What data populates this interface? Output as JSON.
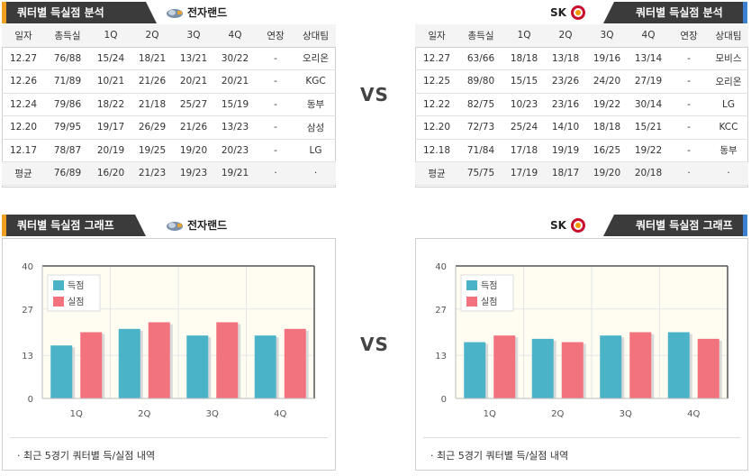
{
  "left": {
    "header": "쿼터별 득실점 분석",
    "team": "전자랜드",
    "columns": [
      "일자",
      "총득실",
      "1Q",
      "2Q",
      "3Q",
      "4Q",
      "연장",
      "상대팀"
    ],
    "rows": [
      [
        "12.27",
        "76/88",
        "15/24",
        "18/21",
        "13/21",
        "30/22",
        "-",
        "오리온"
      ],
      [
        "12.26",
        "71/89",
        "10/21",
        "21/26",
        "20/21",
        "20/21",
        "-",
        "KGC"
      ],
      [
        "12.24",
        "79/86",
        "18/22",
        "21/18",
        "25/27",
        "15/19",
        "-",
        "동부"
      ],
      [
        "12.20",
        "79/95",
        "19/17",
        "26/29",
        "21/26",
        "13/23",
        "-",
        "삼성"
      ],
      [
        "12.17",
        "78/87",
        "20/19",
        "19/25",
        "19/20",
        "20/23",
        "-",
        "LG"
      ]
    ],
    "avg": [
      "평균",
      "76/89",
      "16/20",
      "21/23",
      "19/23",
      "19/21",
      "·",
      "·"
    ],
    "graph_header": "쿼터별 득실점 그래프",
    "footnote": "·  최근 5경기 쿼터별 득/실점 내역",
    "chart_data": {
      "type": "bar",
      "categories": [
        "1Q",
        "2Q",
        "3Q",
        "4Q"
      ],
      "series": [
        {
          "name": "득점",
          "values": [
            16,
            21,
            19,
            19
          ],
          "color": "#4ab3c7"
        },
        {
          "name": "실점",
          "values": [
            20,
            23,
            23,
            21
          ],
          "color": "#f2727e"
        }
      ],
      "yticks": [
        0,
        13,
        27,
        40
      ],
      "ylim": [
        0,
        40
      ],
      "legend": "top-left",
      "grid": true
    }
  },
  "right": {
    "header": "쿼터별 득실점 분석",
    "team": "SK",
    "columns": [
      "일자",
      "총득실",
      "1Q",
      "2Q",
      "3Q",
      "4Q",
      "연장",
      "상대팀"
    ],
    "rows": [
      [
        "12.27",
        "63/66",
        "18/18",
        "13/18",
        "19/16",
        "13/14",
        "-",
        "모비스"
      ],
      [
        "12.25",
        "89/80",
        "15/15",
        "23/26",
        "24/20",
        "27/19",
        "-",
        "오리온"
      ],
      [
        "12.22",
        "82/75",
        "10/23",
        "23/16",
        "19/22",
        "30/14",
        "-",
        "LG"
      ],
      [
        "12.20",
        "72/73",
        "25/24",
        "14/10",
        "18/18",
        "15/21",
        "-",
        "KCC"
      ],
      [
        "12.18",
        "71/84",
        "17/18",
        "19/19",
        "16/25",
        "19/22",
        "-",
        "동부"
      ]
    ],
    "avg": [
      "평균",
      "75/75",
      "17/19",
      "18/17",
      "19/20",
      "20/18",
      "·",
      "·"
    ],
    "graph_header": "쿼터별 득실점 그래프",
    "footnote": "·  최근 5경기 쿼터별 득/실점 내역",
    "chart_data": {
      "type": "bar",
      "categories": [
        "1Q",
        "2Q",
        "3Q",
        "4Q"
      ],
      "series": [
        {
          "name": "득점",
          "values": [
            17,
            18,
            19,
            20
          ],
          "color": "#4ab3c7"
        },
        {
          "name": "실점",
          "values": [
            19,
            17,
            20,
            18
          ],
          "color": "#f2727e"
        }
      ],
      "yticks": [
        0,
        13,
        27,
        40
      ],
      "ylim": [
        0,
        40
      ],
      "legend": "top-left",
      "grid": true
    }
  },
  "vs_label": "VS"
}
